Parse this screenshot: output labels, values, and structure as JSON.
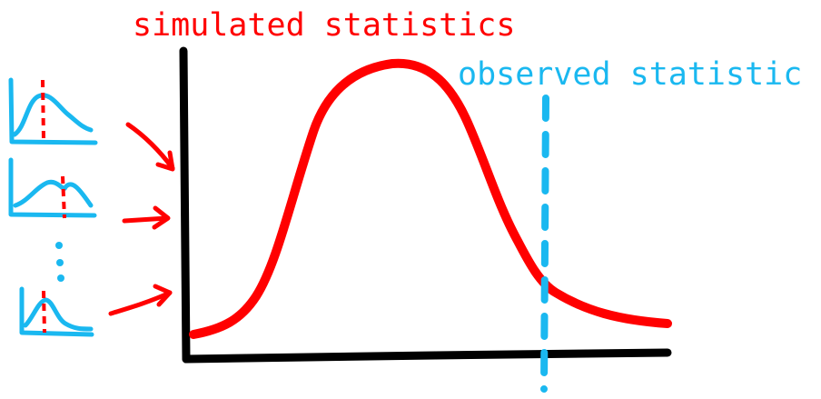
{
  "labels": {
    "simulated": "simulated statistics",
    "observed": "observed statistic"
  },
  "colors": {
    "simulated": "#ff0000",
    "observed": "#1ab8f0",
    "axes": "#000000"
  },
  "small_plots": {
    "count_shown": 3,
    "ellipsis": "vertical dots"
  }
}
